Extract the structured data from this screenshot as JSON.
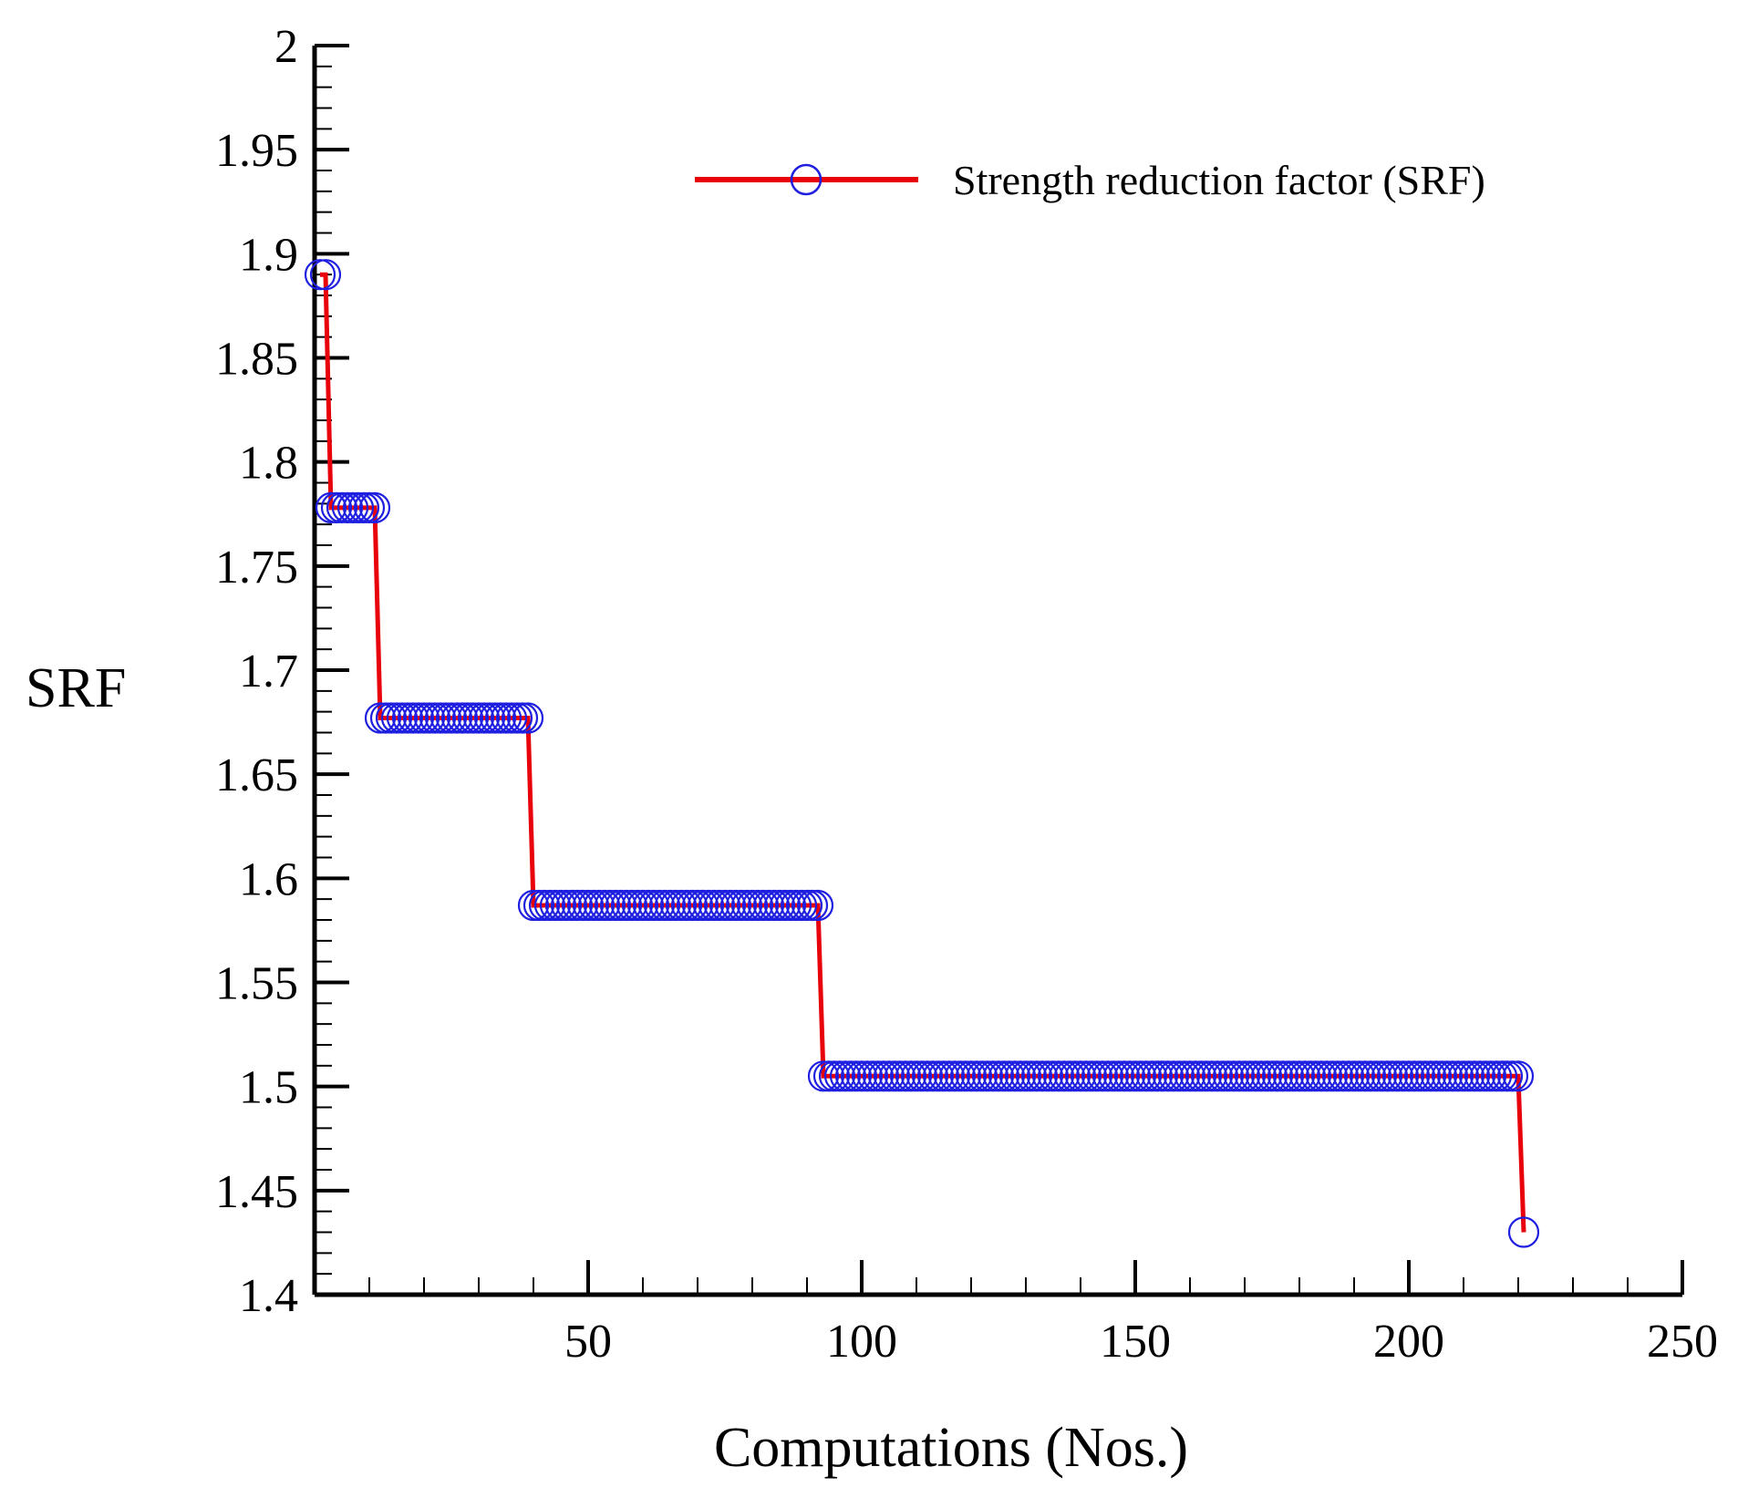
{
  "chart_data": {
    "type": "line",
    "title": "",
    "xlabel": "Computations (Nos.)",
    "ylabel": "SRF",
    "xlim": [
      0,
      250
    ],
    "ylim": [
      1.4,
      2.0
    ],
    "x_ticks": [
      50,
      100,
      150,
      200,
      250
    ],
    "x_tick_labels": [
      "50",
      "100",
      "150",
      "200",
      "250"
    ],
    "y_ticks": [
      1.4,
      1.45,
      1.5,
      1.55,
      1.6,
      1.65,
      1.7,
      1.75,
      1.8,
      1.85,
      1.9,
      1.95,
      2.0
    ],
    "y_tick_labels": [
      "1.4",
      "1.45",
      "1.5",
      "1.55",
      "1.6",
      "1.65",
      "1.7",
      "1.75",
      "1.8",
      "1.85",
      "1.9",
      "1.95",
      "2"
    ],
    "grid": false,
    "legend_position": "top-right",
    "series": [
      {
        "name": "Strength reduction factor (SRF)",
        "line_color": "#e8000b",
        "marker_color": "#1f1fe0",
        "marker": "open-circle",
        "steps": [
          {
            "x_start": 1,
            "x_end": 2,
            "value": 1.89
          },
          {
            "x_start": 3,
            "x_end": 11,
            "value": 1.778
          },
          {
            "x_start": 12,
            "x_end": 39,
            "value": 1.677
          },
          {
            "x_start": 40,
            "x_end": 92,
            "value": 1.587
          },
          {
            "x_start": 93,
            "x_end": 220,
            "value": 1.505
          },
          {
            "x_start": 221,
            "x_end": 221,
            "value": 1.43
          }
        ]
      }
    ]
  }
}
